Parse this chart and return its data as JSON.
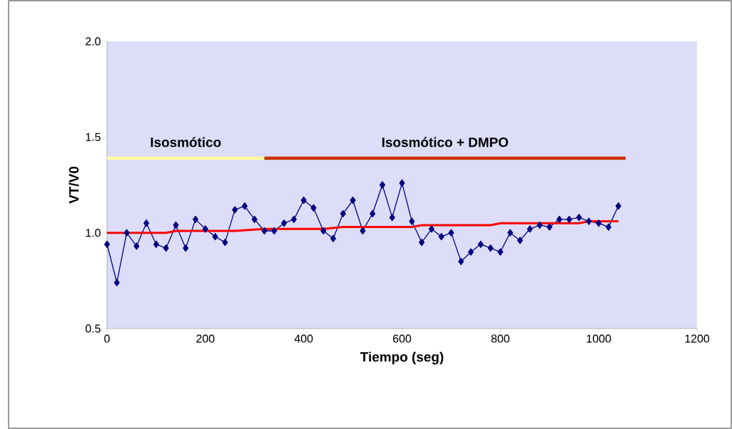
{
  "chart_data": {
    "type": "line",
    "xlabel": "Tiempo (seg)",
    "ylabel": "VT/V0",
    "xlim": [
      0,
      1200
    ],
    "xticks": [
      0,
      200,
      400,
      600,
      800,
      1000,
      1200
    ],
    "ylim": [
      0.5,
      2.0
    ],
    "yticks": [
      {
        "value": 0.5,
        "label": "0.5"
      },
      {
        "value": 1.0,
        "label": "1.0"
      },
      {
        "value": 1.5,
        "label": "1.5"
      },
      {
        "value": 2.0,
        "label": "2.0"
      }
    ],
    "grid": false,
    "marker": "diamond",
    "line_style": "solid",
    "series": [
      {
        "color": "#000080",
        "x": [
          0,
          20,
          40,
          60,
          80,
          100,
          120,
          140,
          160,
          180,
          200,
          220,
          240,
          260,
          280,
          300,
          320,
          340,
          360,
          380,
          400,
          420,
          440,
          460,
          480,
          500,
          520,
          540,
          560,
          580,
          600,
          620,
          640,
          660,
          680,
          700,
          720,
          740,
          760,
          780,
          800,
          820,
          840,
          860,
          880,
          900,
          920,
          940,
          960,
          980,
          1000,
          1020,
          1040
        ],
        "values": [
          0.94,
          0.74,
          1.0,
          0.93,
          1.05,
          0.94,
          0.92,
          1.04,
          0.92,
          1.07,
          1.02,
          0.98,
          0.95,
          1.12,
          1.14,
          1.07,
          1.01,
          1.01,
          1.05,
          1.07,
          1.17,
          1.13,
          1.01,
          0.97,
          1.1,
          1.17,
          1.01,
          1.1,
          1.25,
          1.08,
          1.26,
          1.06,
          0.95,
          1.02,
          0.98,
          1.0,
          0.85,
          0.9,
          0.94,
          0.92,
          0.9,
          1.0,
          0.96,
          1.02,
          1.04,
          1.03,
          1.07,
          1.07,
          1.08,
          1.06,
          1.05,
          1.03,
          1.14
        ]
      },
      {
        "color": "#ff0000",
        "marker": "none",
        "x": [
          0,
          120,
          140,
          260,
          320,
          440,
          480,
          620,
          640,
          780,
          800,
          960,
          980,
          1040
        ],
        "values": [
          1.0,
          1.0,
          1.01,
          1.01,
          1.02,
          1.02,
          1.03,
          1.03,
          1.04,
          1.04,
          1.05,
          1.05,
          1.06,
          1.06
        ]
      },
      {
        "name": "Isosmótico",
        "color": "#ffff99",
        "marker": "none",
        "x": [
          0,
          320
        ],
        "values": [
          1.39,
          1.39
        ]
      },
      {
        "name": "Isosmótico + DMPO",
        "color": "#cc3300",
        "marker": "none",
        "x": [
          320,
          1055
        ],
        "values": [
          1.39,
          1.39
        ]
      }
    ]
  }
}
